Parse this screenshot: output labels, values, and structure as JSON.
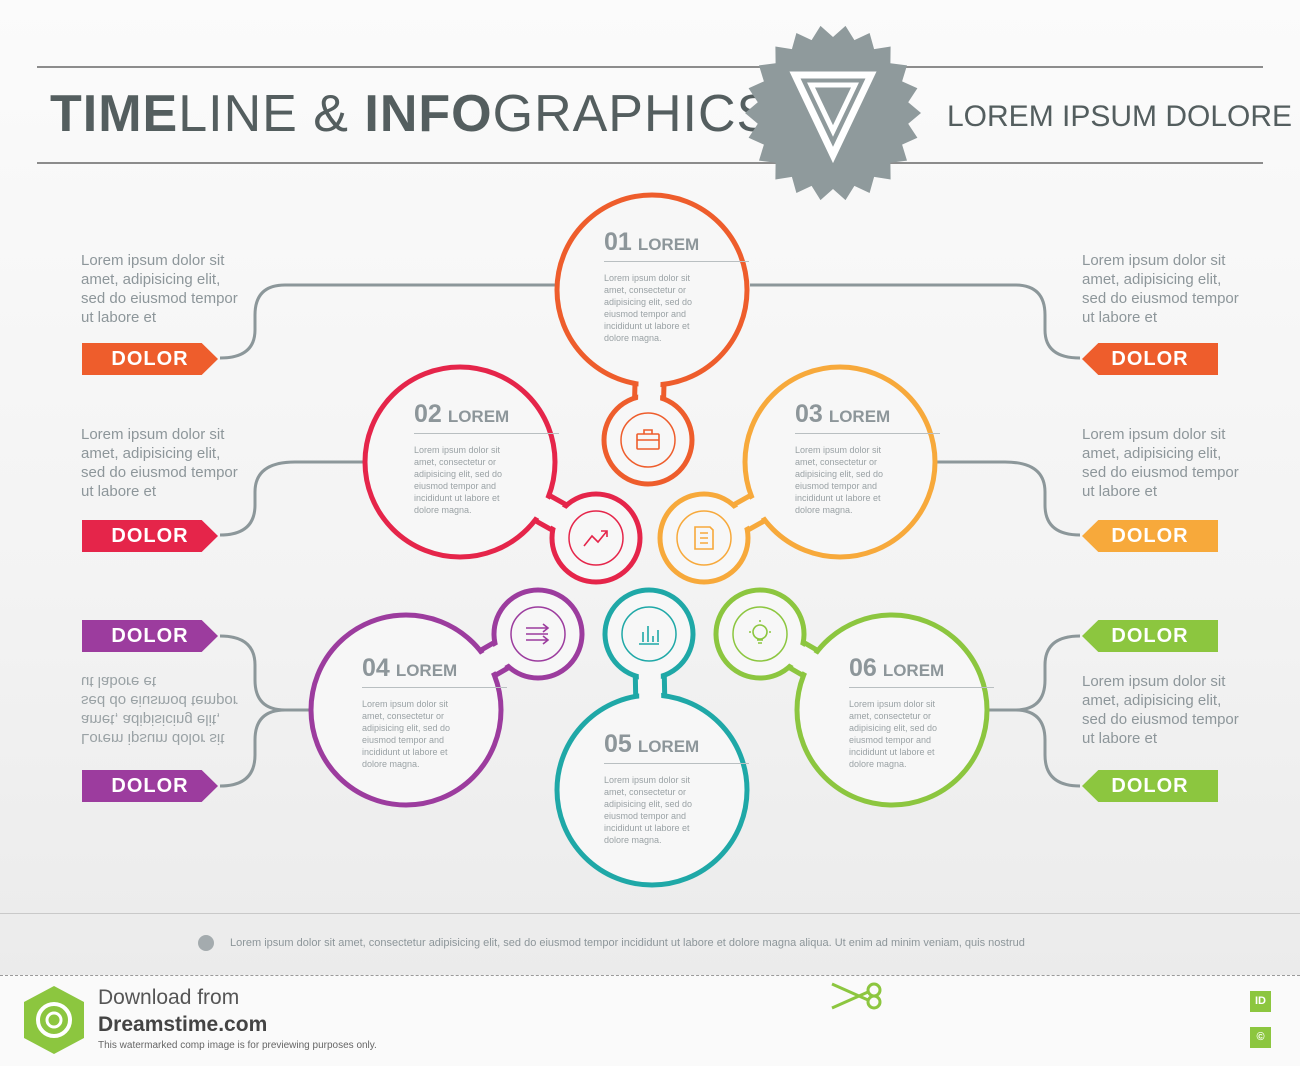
{
  "header": {
    "title_bold_1": "TIME",
    "title_light_1": "LINE & ",
    "title_bold_2": "INFO",
    "title_light_2": "GRAPHICS",
    "subtitle": "LOREM IPSUM DOLORE"
  },
  "side_text": "Lorem ipsum dolor sit amet, adipisicing elit, sed do eiusmod tempor ut labore et",
  "tag_label": "DOLOR",
  "nodes": [
    {
      "number": "01",
      "label": "LOREM",
      "text": "Lorem ipsum dolor sit amet, consectetur or adipisicing elit, sed do eiusmod tempor and incididunt ut labore et dolore magna.",
      "color": "#ee5d2c",
      "icon": "briefcase-icon"
    },
    {
      "number": "02",
      "label": "LOREM",
      "text": "Lorem ipsum dolor sit amet, consectetur or adipisicing elit, sed do eiusmod tempor and incididunt ut labore et dolore magna.",
      "color": "#e5254a",
      "icon": "trend-chart-icon"
    },
    {
      "number": "03",
      "label": "LOREM",
      "text": "Lorem ipsum dolor sit amet, consectetur or adipisicing elit, sed do eiusmod tempor and incididunt ut labore et dolore magna.",
      "color": "#f7a93b",
      "icon": "document-icon"
    },
    {
      "number": "04",
      "label": "LOREM",
      "text": "Lorem ipsum dolor sit amet, consectetur or adipisicing elit, sed do eiusmod tempor and incididunt ut labore et dolore magna.",
      "color": "#9c3c9e",
      "icon": "arrows-icon"
    },
    {
      "number": "05",
      "label": "LOREM",
      "text": "Lorem ipsum dolor sit amet, consectetur or adipisicing elit, sed do eiusmod tempor and incididunt ut labore et dolore magna.",
      "color": "#1fa8a7",
      "icon": "bar-chart-icon"
    },
    {
      "number": "06",
      "label": "LOREM",
      "text": "Lorem ipsum dolor sit amet, consectetur or adipisicing elit, sed do eiusmod tempor and incididunt ut labore et dolore magna.",
      "color": "#8cc63f",
      "icon": "lightbulb-icon"
    }
  ],
  "colors": {
    "connector": "#8c979a",
    "text_gray": "#545e5f",
    "logo_gray": "#8f9a9c"
  },
  "footer": {
    "text": "Lorem ipsum dolor sit amet, consectetur adipisicing elit, sed do eiusmod tempor incididunt ut labore et dolore magna aliqua. Ut enim ad minim veniam, quis nostrud"
  },
  "watermark": {
    "line1": "Download from",
    "line2": "Dreamstime.com",
    "line3": "This watermarked comp image is for previewing purposes only.",
    "id_badge": "ID",
    "copyright_badge": "©"
  }
}
